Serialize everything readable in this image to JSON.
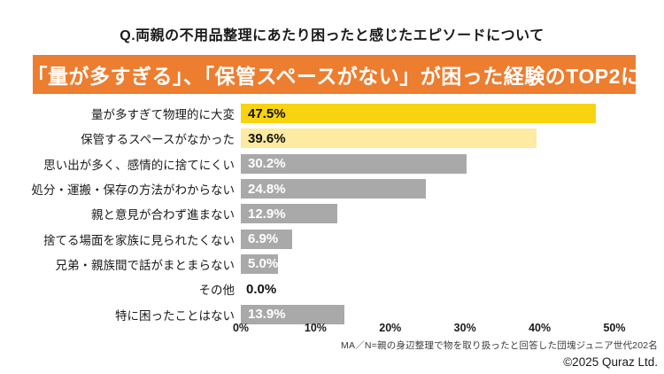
{
  "page": {
    "question_title": "Q.両親の不用品整理にあたり困ったと感じたエピソードについて",
    "headline": "「量が多すぎる」、「保管スペースがない」が困った経験のTOP2に",
    "footnote": "MA／N=親の身辺整理で物を取り扱ったと回答した団塊ジュニア世代202名",
    "copyright": "©2025 Quraz Ltd."
  },
  "colors": {
    "banner_bg": "#ED7D2F",
    "banner_text": "#FFFFFF",
    "bar_gold": "#F8D410",
    "bar_light_yellow": "#FCEBA0",
    "bar_gray": "#A9A9A9",
    "value_dark": "#111111",
    "value_light": "#FFFFFF"
  },
  "chart_data": {
    "type": "bar",
    "orientation": "horizontal",
    "title": "Q.両親の不用品整理にあたり困ったと感じたエピソードについて",
    "categories": [
      "量が多すぎて物理的に大変",
      "保管するスペースがなかった",
      "思い出が多く、感情的に捨てにくい",
      "処分・運搬・保存の方法がわからない",
      "親と意見が合わず進まない",
      "捨てる場面を家族に見られたくない",
      "兄弟・親族間で話がまとまらない",
      "その他",
      "特に困ったことはない"
    ],
    "values": [
      47.5,
      39.6,
      30.2,
      24.8,
      12.9,
      6.9,
      5.0,
      0.0,
      13.9
    ],
    "value_labels": [
      "47.5%",
      "39.6%",
      "30.2%",
      "24.8%",
      "12.9%",
      "6.9%",
      "5.0%",
      "0.0%",
      "13.9%"
    ],
    "bar_colors": [
      "#F8D410",
      "#FCEBA0",
      "#A9A9A9",
      "#A9A9A9",
      "#A9A9A9",
      "#A9A9A9",
      "#A9A9A9",
      "none",
      "#A9A9A9"
    ],
    "value_text_colors": [
      "#111111",
      "#111111",
      "#FFFFFF",
      "#FFFFFF",
      "#FFFFFF",
      "#FFFFFF",
      "#FFFFFF",
      "#111111",
      "#FFFFFF"
    ],
    "xlabel": "",
    "ylabel": "",
    "xlim": [
      0,
      50
    ],
    "x_ticks": [
      0,
      10,
      20,
      30,
      40,
      50
    ],
    "x_tick_labels": [
      "0%",
      "10%",
      "20%",
      "30%",
      "40%",
      "50%"
    ],
    "grid": false,
    "legend": false,
    "value_label_position": "inside-left"
  }
}
